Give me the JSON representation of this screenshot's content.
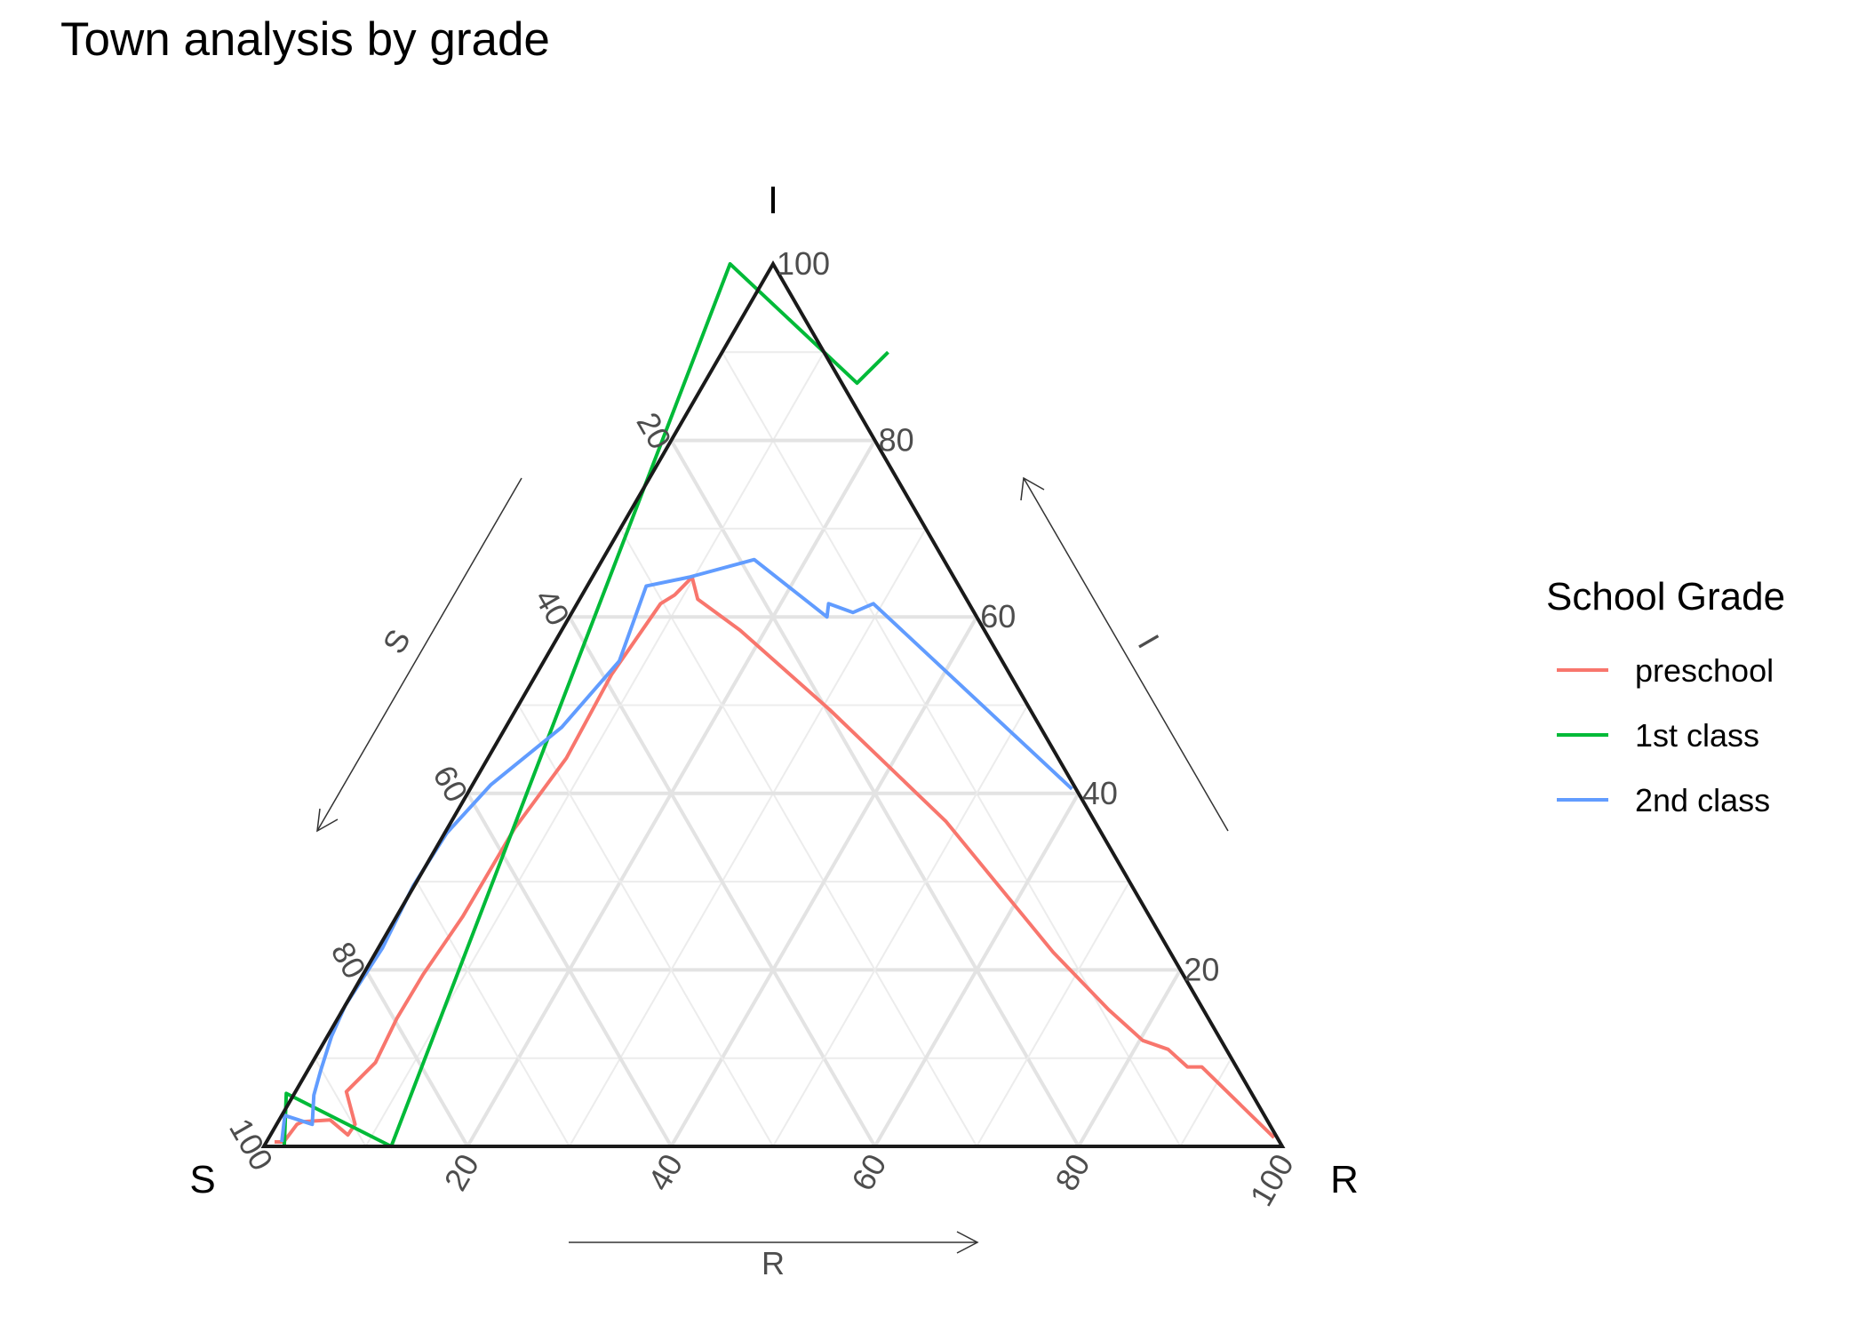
{
  "chart_data": {
    "type": "ternary-line",
    "title": "Town analysis by grade",
    "axes": {
      "top": "I",
      "left": "S",
      "right": "R"
    },
    "axis_arrow_labels": {
      "S": "S",
      "I": "I",
      "R": "R"
    },
    "ticks": [
      20,
      40,
      60,
      80,
      100
    ],
    "tick_labels": [
      "20",
      "40",
      "60",
      "80",
      "100"
    ],
    "grid": true,
    "legend": {
      "title": "School Grade",
      "position": "right",
      "entries": [
        "preschool",
        "1st class",
        "2nd class"
      ]
    },
    "series": [
      {
        "name": "preschool",
        "color": "#F8766D",
        "points": [
          [
            98.7,
            0.5,
            0.8
          ],
          [
            97.8,
            0.5,
            1.7
          ],
          [
            95.5,
            2.5,
            2.0
          ],
          [
            94.8,
            2.8,
            2.4
          ],
          [
            92.0,
            3.0,
            5.0
          ],
          [
            91.1,
            1.3,
            7.6
          ],
          [
            89.8,
            2.5,
            7.7
          ],
          [
            88.8,
            6.2,
            5.0
          ],
          [
            84.3,
            9.5,
            6.2
          ],
          [
            79.7,
            14.5,
            5.8
          ],
          [
            74.6,
            19.5,
            5.9
          ],
          [
            67.5,
            26.0,
            6.5
          ],
          [
            57.4,
            36.0,
            6.6
          ],
          [
            48.3,
            44.0,
            7.7
          ],
          [
            39.1,
            53.5,
            7.4
          ],
          [
            30.3,
            61.5,
            8.2
          ],
          [
            28.4,
            62.5,
            9.1
          ],
          [
            25.7,
            64.5,
            9.8
          ],
          [
            26.4,
            62.0,
            11.6
          ],
          [
            24.0,
            58.5,
            17.5
          ],
          [
            19.7,
            49.5,
            30.8
          ],
          [
            14.6,
            36.8,
            48.6
          ],
          [
            11.5,
            22.0,
            66.5
          ],
          [
            9.3,
            15.5,
            75.2
          ],
          [
            7.7,
            12.0,
            80.3
          ],
          [
            5.7,
            11.0,
            83.3
          ],
          [
            4.8,
            9.0,
            86.2
          ],
          [
            3.4,
            9.0,
            87.6
          ],
          [
            0.3,
            1.0,
            98.7
          ]
        ]
      },
      {
        "name": "1st class",
        "color": "#00BA38",
        "points": [
          [
            98.0,
            0.0,
            2.0
          ],
          [
            94.8,
            6.0,
            -0.8
          ],
          [
            87.5,
            0.0,
            12.5
          ],
          [
            3.8,
            90.0,
            -3.8
          ],
          [
            -1.5,
            86.5,
            15.0
          ],
          [
            -6.3,
            90.0,
            16.3
          ]
        ]
      },
      {
        "name": "2nd class",
        "color": "#619CFF",
        "points": [
          [
            98.0,
            0.5,
            1.5
          ],
          [
            96.2,
            3.5,
            0.3
          ],
          [
            94.0,
            2.5,
            3.5
          ],
          [
            92.2,
            5.8,
            2.0
          ],
          [
            90.2,
            8.5,
            1.3
          ],
          [
            87.1,
            12.5,
            0.4
          ],
          [
            84.0,
            16.0,
            0.0
          ],
          [
            77.1,
            22.5,
            0.4
          ],
          [
            70.6,
            29.5,
            -0.1
          ],
          [
            64.3,
            35.5,
            0.2
          ],
          [
            57.2,
            41.0,
            1.8
          ],
          [
            47.0,
            47.5,
            5.5
          ],
          [
            37.6,
            55.0,
            7.4
          ],
          [
            30.7,
            63.5,
            5.8
          ],
          [
            26.0,
            64.5,
            9.5
          ],
          [
            18.6,
            66.5,
            14.9
          ],
          [
            14.7,
            60.0,
            25.3
          ],
          [
            13.8,
            61.5,
            24.7
          ],
          [
            11.9,
            60.5,
            27.6
          ],
          [
            9.4,
            61.5,
            29.1
          ],
          [
            0.4,
            40.5,
            59.1
          ]
        ]
      }
    ]
  }
}
